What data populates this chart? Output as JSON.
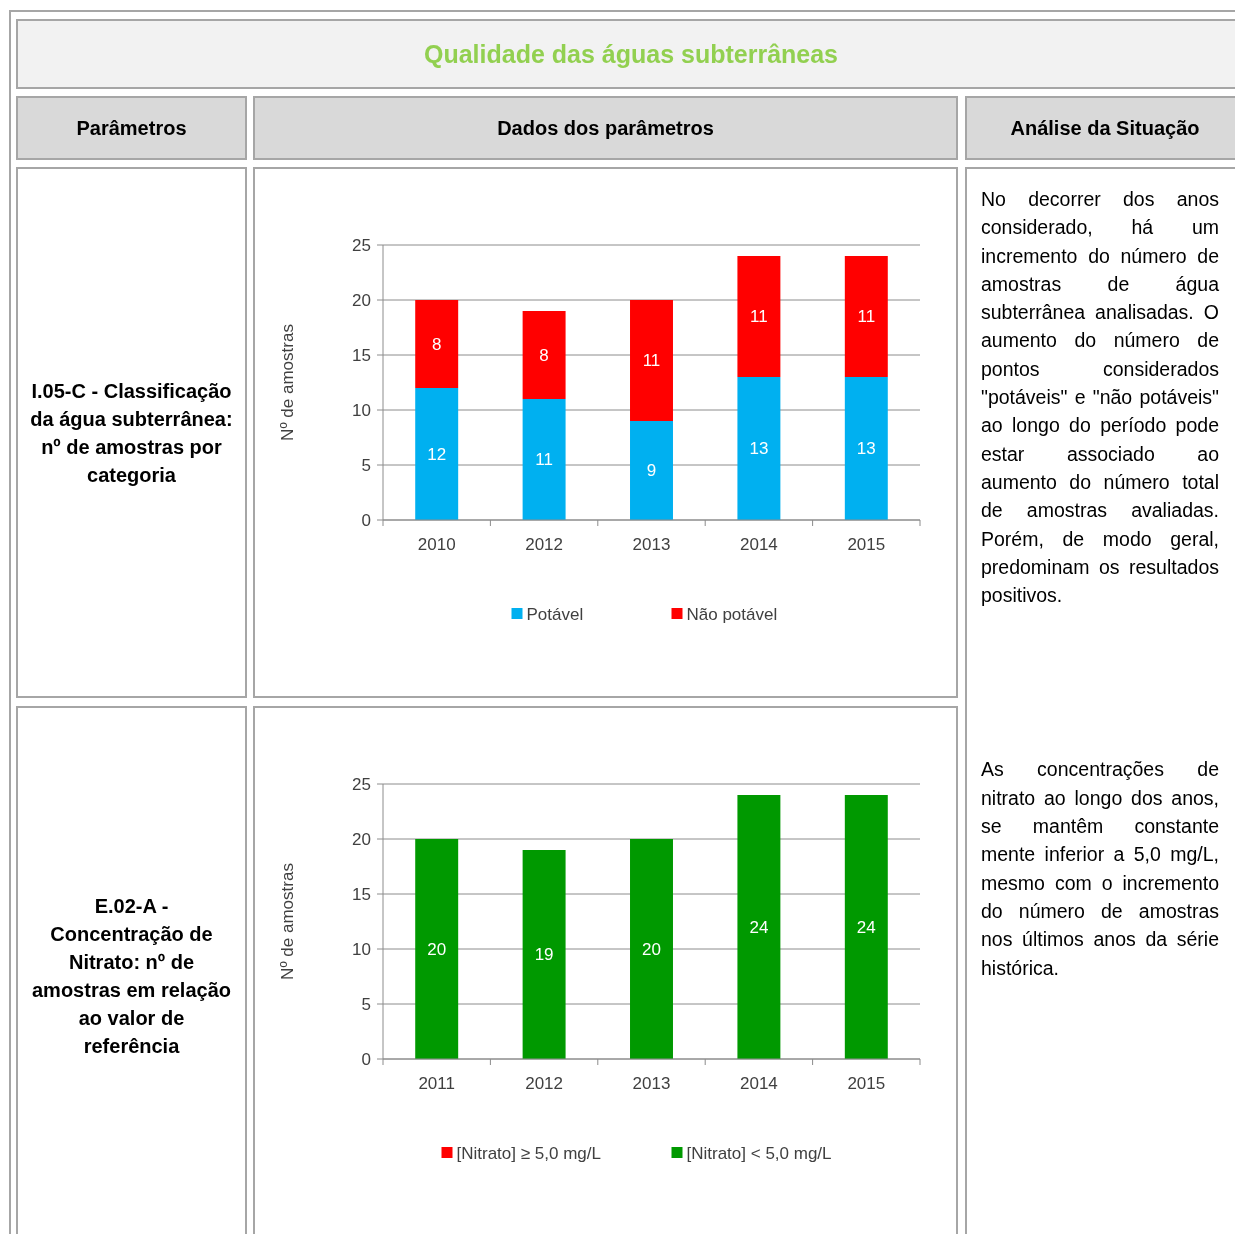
{
  "chart_data": [
    {
      "type": "other",
      "title": "Qualidade das águas subterrâneas",
      "annotations": [
        "Parâmetros",
        "Dados dos parâmetros",
        "Análise da Situação",
        "I.05-C - Classificação da água subterrânea: nº de amostras por categoria",
        "E.02-A - Concentração de Nitrato: nº de amostras em relação ao valor de referência",
        "No decorrer dos anos considerado, há um incremento do número de amostras de água subterrânea analisadas. O aumento do número de pontos considerados \"potáveis\" e \"não potáveis\" ao longo do período pode estar associado ao aumento do número total de amostras avaliadas. Porém, de modo geral, predominam os resultados positivos.",
        "As concentrações de nitrato ao longo dos anos, se mantêm constante mente inferior a 5,0 mg/L, mesmo com o incremento do número de amostras nos últimos anos da série histórica."
      ]
    },
    {
      "type": "bar",
      "stacked": true,
      "ylabel": "Nº de amostras",
      "categories": [
        "2010",
        "2012",
        "2013",
        "2014",
        "2015"
      ],
      "ylim": [
        0,
        25
      ],
      "yticks": [
        0,
        5,
        10,
        15,
        20,
        25
      ],
      "grid": "y",
      "legend": "bottom",
      "data_labels": true,
      "series": [
        {
          "name": "Potável",
          "color": "#00b0f0",
          "values": [
            12,
            11,
            9,
            13,
            13
          ]
        },
        {
          "name": "Não potável",
          "color": "#ff0000",
          "values": [
            8,
            8,
            11,
            11,
            11
          ]
        }
      ]
    },
    {
      "type": "bar",
      "stacked": true,
      "ylabel": "Nº de amostras",
      "categories": [
        "2011",
        "2012",
        "2013",
        "2014",
        "2015"
      ],
      "ylim": [
        0,
        25
      ],
      "yticks": [
        0,
        5,
        10,
        15,
        20,
        25
      ],
      "grid": "y",
      "legend": "bottom",
      "series": [
        {
          "name": "[Nitrato] ≥ 5,0 mg/L",
          "color": "#ff0000",
          "values": [
            0,
            0,
            0,
            0,
            0
          ],
          "value_labels": [
            null,
            null,
            null,
            null,
            null
          ]
        },
        {
          "name": "[Nitrato] < 5,0 mg/L",
          "color": "#009900",
          "values": [
            20,
            19,
            20,
            24,
            24
          ],
          "value_labels": [
            "20",
            "19",
            "20",
            "24",
            "24"
          ]
        }
      ]
    }
  ]
}
